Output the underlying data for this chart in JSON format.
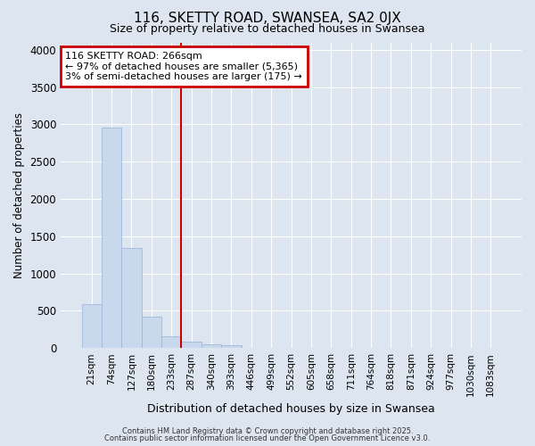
{
  "title": "116, SKETTY ROAD, SWANSEA, SA2 0JX",
  "subtitle": "Size of property relative to detached houses in Swansea",
  "xlabel": "Distribution of detached houses by size in Swansea",
  "ylabel": "Number of detached properties",
  "categories": [
    "21sqm",
    "74sqm",
    "127sqm",
    "180sqm",
    "233sqm",
    "287sqm",
    "340sqm",
    "393sqm",
    "446sqm",
    "499sqm",
    "552sqm",
    "605sqm",
    "658sqm",
    "711sqm",
    "764sqm",
    "818sqm",
    "871sqm",
    "924sqm",
    "977sqm",
    "1030sqm",
    "1083sqm"
  ],
  "values": [
    590,
    2960,
    1340,
    420,
    160,
    80,
    50,
    35,
    0,
    0,
    0,
    0,
    0,
    0,
    0,
    0,
    0,
    0,
    0,
    0,
    0
  ],
  "bar_color": "#c8d8ed",
  "bar_edge_color": "#a0b8d8",
  "background_color": "#dde6f0",
  "grid_color": "#ffffff",
  "red_line_x": 4.5,
  "annotation_text": "116 SKETTY ROAD: 266sqm\n← 97% of detached houses are smaller (5,365)\n3% of semi-detached houses are larger (175) →",
  "annotation_box_color": "#ffffff",
  "annotation_box_edge_color": "#cc0000",
  "ylim": [
    0,
    4100
  ],
  "yticks": [
    0,
    500,
    1000,
    1500,
    2000,
    2500,
    3000,
    3500,
    4000
  ],
  "footer1": "Contains HM Land Registry data © Crown copyright and database right 2025.",
  "footer2": "Contains public sector information licensed under the Open Government Licence v3.0."
}
